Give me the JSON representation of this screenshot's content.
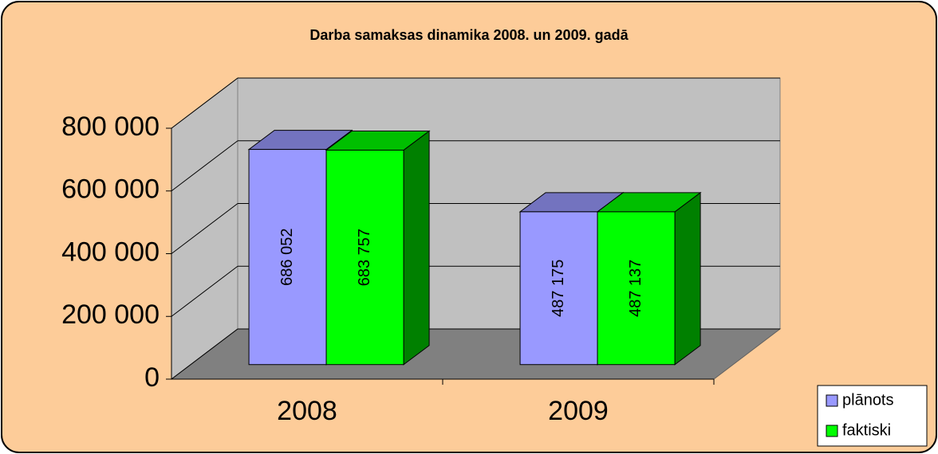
{
  "chart_data": {
    "type": "bar3d",
    "title": "Darba samaksas dinamika  2008. un 2009. gadā",
    "categories": [
      "2008",
      "2009"
    ],
    "series": [
      {
        "name": "plānots",
        "color": "#9999ff",
        "values": [
          686052,
          487175
        ],
        "value_labels": [
          "686 052",
          "487 175"
        ]
      },
      {
        "name": "faktiski",
        "color": "#00ff00",
        "values": [
          683757,
          487137
        ],
        "value_labels": [
          "683 757",
          "487 137"
        ]
      }
    ],
    "ylim": [
      0,
      800000
    ],
    "yticks": [
      0,
      {
        "value": 200000,
        "label": "200 000"
      },
      {
        "value": 400000,
        "label": "400 000"
      },
      {
        "value": 600000,
        "label": "600 000"
      },
      {
        "value": 800000,
        "label": "800 000"
      }
    ],
    "grid": true,
    "legend": "bottom-right"
  }
}
